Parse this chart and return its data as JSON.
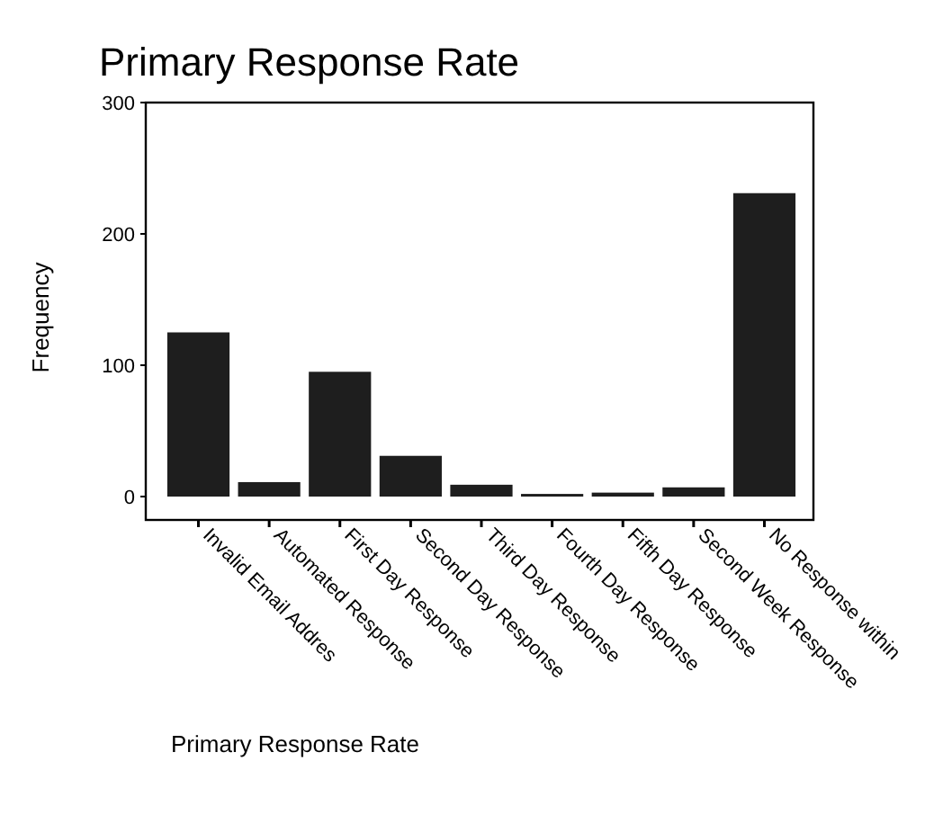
{
  "chart_data": {
    "type": "bar",
    "title": "Primary Response Rate",
    "xlabel": "Primary Response Rate",
    "ylabel": "Frequency",
    "categories": [
      "Invalid Email Addres",
      "Automated Response",
      "First Day Response",
      "Second Day Response",
      "Third Day Response",
      "Fourth Day Response",
      "Fifth Day Response",
      "Second Week Response",
      "No  Response within"
    ],
    "values": [
      125,
      11,
      95,
      31,
      9,
      2,
      3,
      7,
      231
    ],
    "color": "#1e1e1e",
    "ylim": [
      0,
      300
    ],
    "yticks": [
      0,
      100,
      200,
      300
    ],
    "grid": false
  }
}
